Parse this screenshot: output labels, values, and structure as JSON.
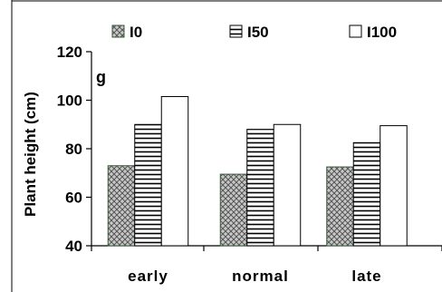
{
  "chart_data": {
    "type": "bar",
    "panel_label": "g",
    "categories": [
      "early",
      "normal",
      "late"
    ],
    "series": [
      {
        "name": "I0",
        "values": [
          73,
          69.5,
          72.5
        ],
        "pattern": "crosshatch"
      },
      {
        "name": "I50",
        "values": [
          90,
          88,
          82.5
        ],
        "pattern": "horizontal-lines"
      },
      {
        "name": "I100",
        "values": [
          101.5,
          90,
          89.5
        ],
        "pattern": "solid-white"
      }
    ],
    "title": "",
    "xlabel": "",
    "ylabel": "Plant height (cm)",
    "ylim": [
      40,
      120
    ],
    "yticks": [
      "40",
      "60",
      "80",
      "100",
      "120"
    ],
    "grid": false,
    "legend_position": "top",
    "colors": {
      "bar_stroke": "#000000",
      "crosshatch_fill": "#b0b0b0",
      "crosshatch_stroke": "#3a5a3a",
      "background": "#ffffff"
    }
  }
}
